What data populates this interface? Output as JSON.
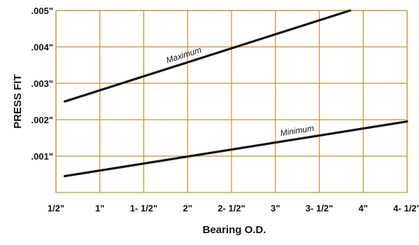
{
  "chart_data": {
    "type": "line",
    "xlabel": "Bearing O.D.",
    "ylabel": "PRESS FIT",
    "x_ticks": [
      0.5,
      1,
      1.5,
      2,
      2.5,
      3,
      3.5,
      4,
      4.5
    ],
    "x_tick_labels": [
      "1/2\"",
      "1\"",
      "1- 1/2\"",
      "2\"",
      "2- 1/2\"",
      "3\"",
      "3- 1/2\"",
      "4\"",
      "4- 1/2\""
    ],
    "xlim": [
      0.5,
      4.5
    ],
    "y_ticks": [
      0.001,
      0.002,
      0.003,
      0.004,
      0.005
    ],
    "y_tick_labels": [
      ".001\"",
      ".002\"",
      ".003\"",
      ".004\"",
      ".005\""
    ],
    "ylim": [
      0,
      0.005
    ],
    "grid": true,
    "colors": {
      "grid": "#c8902a",
      "line": "#111111"
    },
    "series": [
      {
        "name": "Maximum",
        "points": [
          [
            0.6,
            0.0025
          ],
          [
            3.85,
            0.005
          ]
        ]
      },
      {
        "name": "Minimum",
        "points": [
          [
            0.6,
            0.00045
          ],
          [
            4.5,
            0.00195
          ]
        ]
      }
    ]
  }
}
